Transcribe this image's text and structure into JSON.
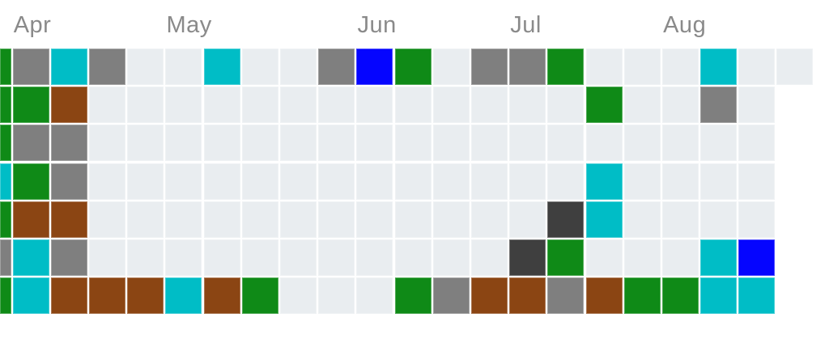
{
  "colors": {
    "background": "#ffffff",
    "month_label": "#8a8a8a"
  },
  "chart_data": {
    "type": "heatmap",
    "title": "",
    "rows": 7,
    "columns": 22,
    "x_tick_labels": [
      "Apr",
      "May",
      "Jun",
      "Jul",
      "Aug"
    ],
    "x_tick_columns": [
      1,
      5,
      10,
      14,
      18
    ],
    "legend_position": "none",
    "grid_gap_color": "#ffffff",
    "palette": {
      "green": "#0f8a17",
      "teal": "#00bdc6",
      "gray": "#7f7f7f",
      "brown": "#8b4513",
      "blue": "#0505ff",
      "dark": "#3f3f3f",
      "empty": "#e9edf0"
    },
    "cells": [
      [
        "green",
        "gray",
        "teal",
        "gray",
        "empty",
        "empty",
        "teal",
        "empty",
        "empty",
        "gray",
        "blue",
        "green",
        "empty",
        "gray",
        "gray",
        "green",
        "empty",
        "empty",
        "empty",
        "teal",
        "empty",
        "empty"
      ],
      [
        "green",
        "green",
        "brown",
        "empty",
        "empty",
        "empty",
        "empty",
        "empty",
        "empty",
        "empty",
        "empty",
        "empty",
        "empty",
        "empty",
        "empty",
        "empty",
        "green",
        "empty",
        "empty",
        "gray",
        "empty",
        "none"
      ],
      [
        "green",
        "gray",
        "gray",
        "empty",
        "empty",
        "empty",
        "empty",
        "empty",
        "empty",
        "empty",
        "empty",
        "empty",
        "empty",
        "empty",
        "empty",
        "empty",
        "empty",
        "empty",
        "empty",
        "empty",
        "empty",
        "none"
      ],
      [
        "teal",
        "green",
        "gray",
        "empty",
        "empty",
        "empty",
        "empty",
        "empty",
        "empty",
        "empty",
        "empty",
        "empty",
        "empty",
        "empty",
        "empty",
        "empty",
        "teal",
        "empty",
        "empty",
        "empty",
        "empty",
        "none"
      ],
      [
        "green",
        "brown",
        "brown",
        "empty",
        "empty",
        "empty",
        "empty",
        "empty",
        "empty",
        "empty",
        "empty",
        "empty",
        "empty",
        "empty",
        "empty",
        "dark",
        "teal",
        "empty",
        "empty",
        "empty",
        "empty",
        "none"
      ],
      [
        "gray",
        "teal",
        "gray",
        "empty",
        "empty",
        "empty",
        "empty",
        "empty",
        "empty",
        "empty",
        "empty",
        "empty",
        "empty",
        "empty",
        "dark",
        "green",
        "empty",
        "empty",
        "empty",
        "teal",
        "blue",
        "none"
      ],
      [
        "green",
        "teal",
        "brown",
        "brown",
        "brown",
        "teal",
        "brown",
        "green",
        "empty",
        "empty",
        "empty",
        "green",
        "gray",
        "brown",
        "brown",
        "gray",
        "brown",
        "green",
        "green",
        "teal",
        "teal",
        "none"
      ]
    ]
  }
}
